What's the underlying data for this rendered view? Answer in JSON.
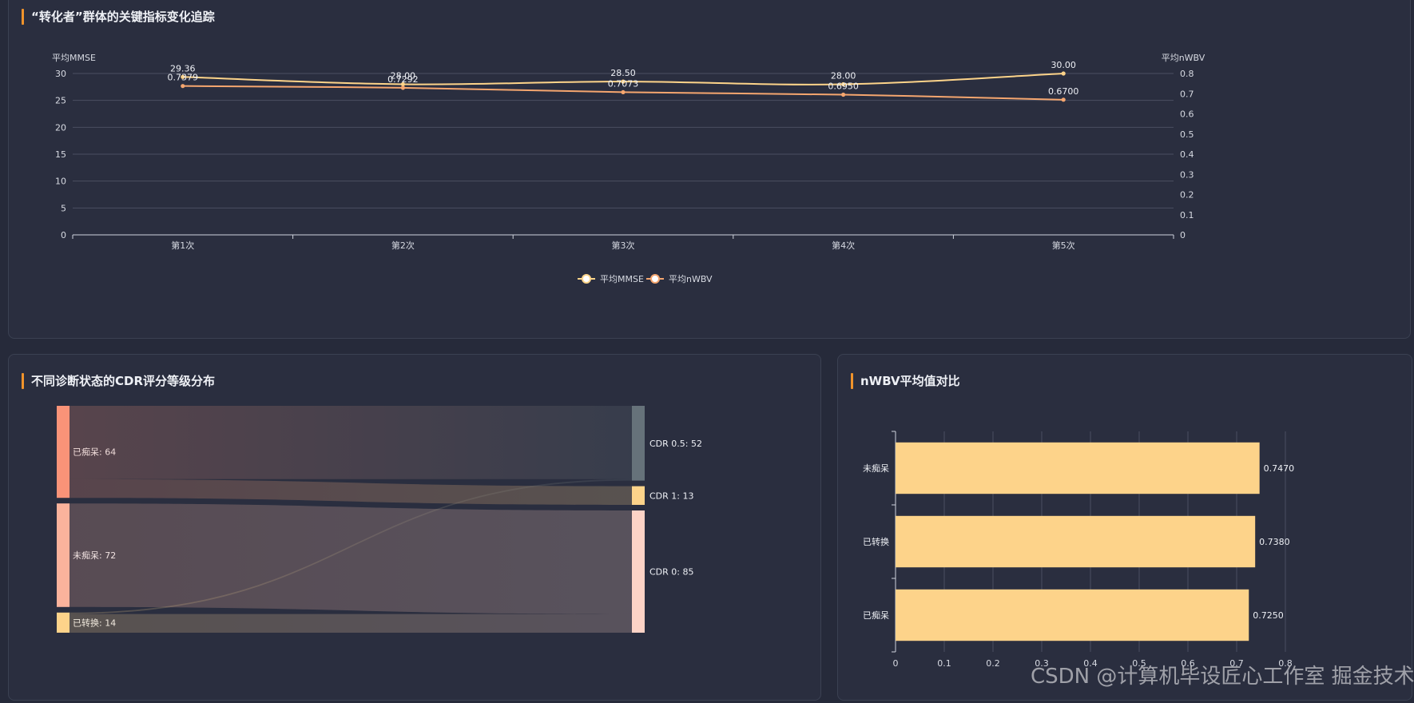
{
  "line_panel": {
    "title": "“转化者”群体的关键指标变化追踪"
  },
  "sankey_panel": {
    "title": "不同诊断状态的CDR评分等级分布"
  },
  "bar_panel": {
    "title": "nWBV平均值对比"
  },
  "watermark": "CSDN @计算机毕设匠心工作室  掘金技术社区",
  "colors": {
    "mmse": "#fdd48a",
    "nwbv": "#f5a66f",
    "dementia": "#f99378",
    "nondementia": "#fbb39c",
    "converted": "#fdd38a",
    "cdr05": "#66727a",
    "cdr1": "#fdd38a",
    "cdr0": "#fdd3c6",
    "bar": "#fdd38a",
    "accent": "#f0932b"
  },
  "chart_data": [
    {
      "type": "line",
      "title": "“转化者”群体的关键指标变化追踪",
      "categories": [
        "第1次",
        "第2次",
        "第3次",
        "第4次",
        "第5次"
      ],
      "y_left": {
        "label": "平均MMSE",
        "range": [
          0,
          30
        ],
        "ticks": [
          "0",
          "5",
          "10",
          "15",
          "20",
          "25",
          "30"
        ]
      },
      "y_right": {
        "label": "平均nWBV",
        "range": [
          0,
          0.8
        ],
        "ticks": [
          "0",
          "0.1",
          "0.2",
          "0.3",
          "0.4",
          "0.5",
          "0.6",
          "0.7",
          "0.8"
        ]
      },
      "series": [
        {
          "name": "平均MMSE",
          "axis": "left",
          "values": [
            29.36,
            28.0,
            28.5,
            28.0,
            30.0
          ],
          "labels": [
            "29.36",
            "28.00",
            "28.50",
            "28.00",
            "30.00"
          ]
        },
        {
          "name": "平均nWBV",
          "axis": "right",
          "values": [
            0.7379,
            0.7292,
            0.7073,
            0.695,
            0.67
          ],
          "labels": [
            "0.7379",
            "0.7292",
            "0.7073",
            "0.6950",
            "0.6700"
          ]
        }
      ],
      "legend": "bottom-center",
      "grid": true
    },
    {
      "type": "sankey",
      "title": "不同诊断状态的CDR评分等级分布",
      "sources": [
        {
          "name": "已痴呆",
          "value": 64,
          "label": "已痴呆: 64"
        },
        {
          "name": "未痴呆",
          "value": 72,
          "label": "未痴呆: 72"
        },
        {
          "name": "已转换",
          "value": 14,
          "label": "已转换: 14"
        }
      ],
      "targets": [
        {
          "name": "CDR 0.5",
          "value": 52,
          "label": "CDR 0.5: 52"
        },
        {
          "name": "CDR 1",
          "value": 13,
          "label": "CDR 1: 13"
        },
        {
          "name": "CDR 0",
          "value": 85,
          "label": "CDR 0: 85"
        }
      ],
      "links": [
        {
          "source": "已痴呆",
          "target": "CDR 0.5",
          "value": 51
        },
        {
          "source": "已痴呆",
          "target": "CDR 1",
          "value": 13
        },
        {
          "source": "未痴呆",
          "target": "CDR 0",
          "value": 72
        },
        {
          "source": "已转换",
          "target": "CDR 0.5",
          "value": 1
        },
        {
          "source": "已转换",
          "target": "CDR 0",
          "value": 13
        }
      ]
    },
    {
      "type": "bar",
      "orientation": "horizontal",
      "title": "nWBV平均值对比",
      "categories": [
        "未痴呆",
        "已转换",
        "已痴呆"
      ],
      "values": [
        0.747,
        0.738,
        0.725
      ],
      "labels": [
        "0.7470",
        "0.7380",
        "0.7250"
      ],
      "xlim": [
        0,
        0.8
      ],
      "x_ticks": [
        "0",
        "0.1",
        "0.2",
        "0.3",
        "0.4",
        "0.5",
        "0.6",
        "0.7",
        "0.8"
      ],
      "grid": true
    }
  ]
}
